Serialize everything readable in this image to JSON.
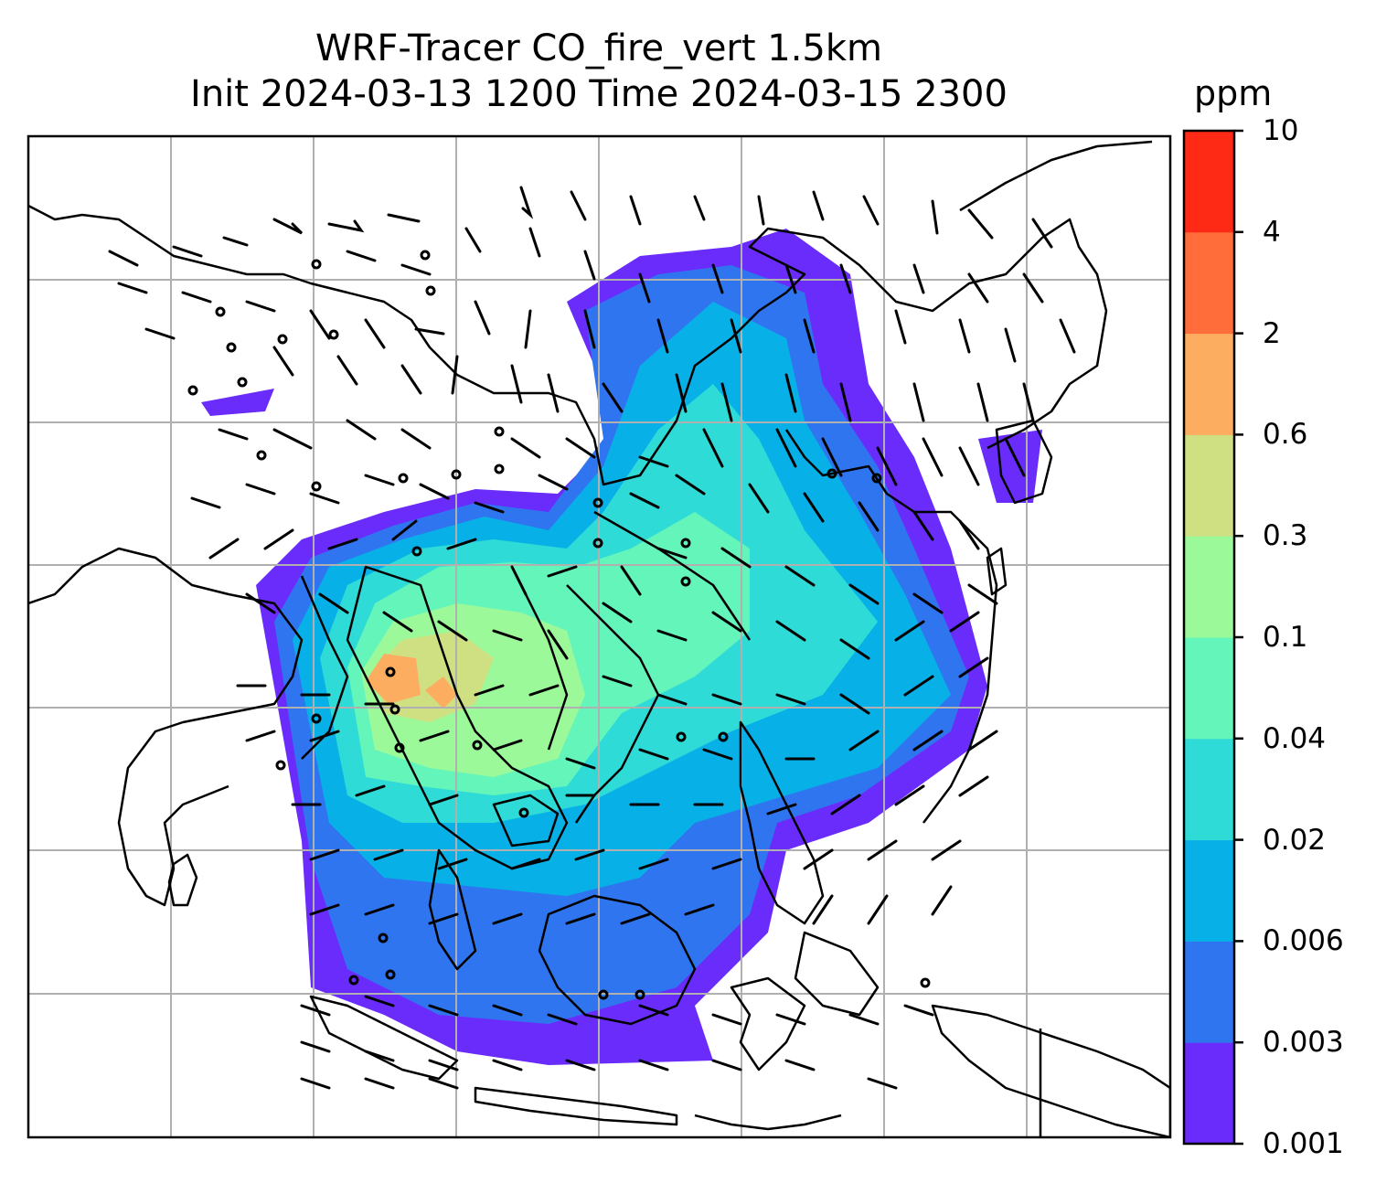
{
  "title": {
    "line1": "WRF-Tracer CO_fire_vert 1.5km",
    "line2": "Init 2024-03-13 1200 Time 2024-03-15 2300"
  },
  "colorbar": {
    "unit": "ppm",
    "levels": [
      "0.001",
      "0.003",
      "0.006",
      "0.02",
      "0.04",
      "0.1",
      "0.3",
      "0.6",
      "2",
      "4",
      "10"
    ],
    "colors": [
      "#6a2cfb",
      "#3075f0",
      "#07b1e8",
      "#2edbd7",
      "#64f5bb",
      "#9cf999",
      "#cfe083",
      "#fdad60",
      "#ff6e3a",
      "#fe2a16"
    ]
  },
  "map": {
    "field": "CO_fire_vert",
    "gridlines": true,
    "coastlines": true,
    "wind_barbs": true
  }
}
